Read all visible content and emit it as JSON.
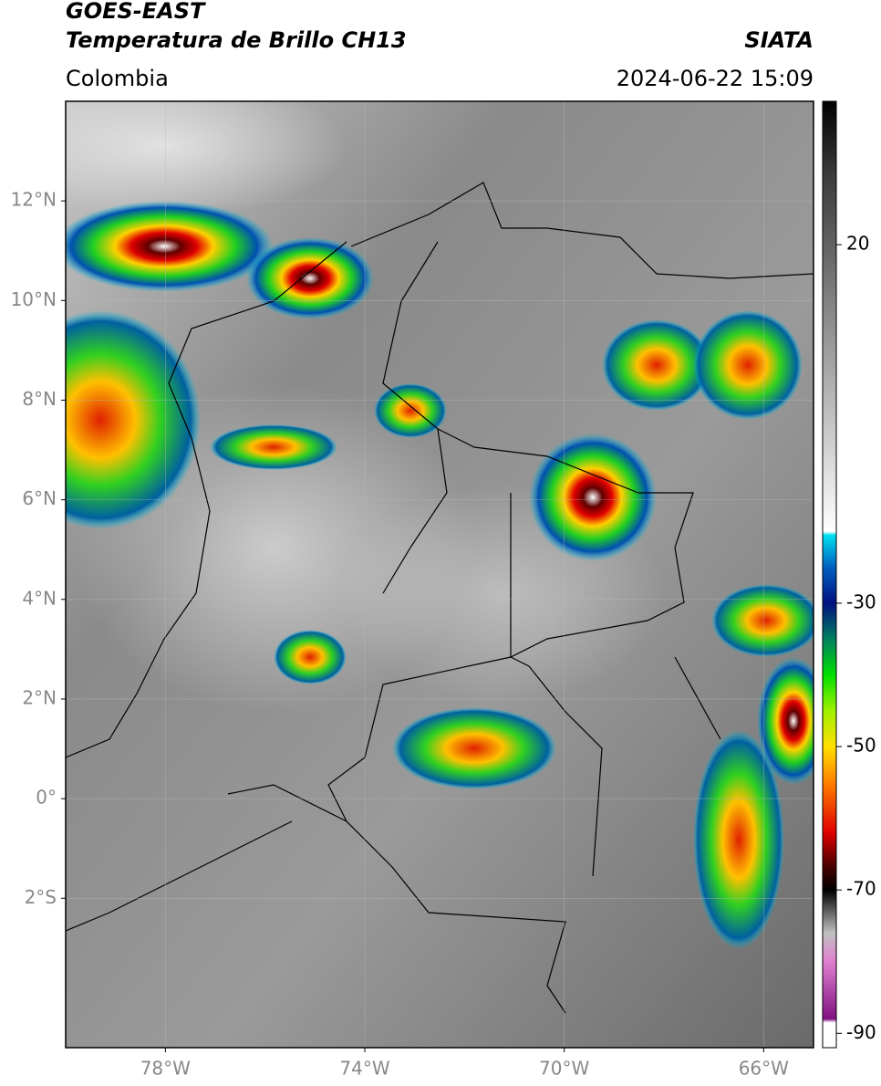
{
  "header": {
    "title": "GOES-EAST",
    "subtitle": "Temperatura de Brillo CH13",
    "source": "SIATA",
    "region": "Colombia",
    "datetime": "2024-06-22 15:09"
  },
  "map": {
    "xlim": [
      -80,
      -65
    ],
    "ylim": [
      -5,
      14
    ],
    "xticks": [
      {
        "value": -78,
        "label": "78°W"
      },
      {
        "value": -74,
        "label": "74°W"
      },
      {
        "value": -70,
        "label": "70°W"
      },
      {
        "value": -66,
        "label": "66°W"
      }
    ],
    "yticks": [
      {
        "value": 12,
        "label": "12°N"
      },
      {
        "value": 10,
        "label": "10°N"
      },
      {
        "value": 8,
        "label": "8°N"
      },
      {
        "value": 6,
        "label": "6°N"
      },
      {
        "value": 4,
        "label": "4°N"
      },
      {
        "value": 2,
        "label": "2°N"
      },
      {
        "value": 0,
        "label": "0°"
      },
      {
        "value": -2,
        "label": "2°S"
      }
    ],
    "grid": true
  },
  "colorbar": {
    "lim": [
      -92,
      40
    ],
    "ticks": [
      20,
      -30,
      -50,
      -70,
      -90
    ],
    "stops": [
      {
        "value": 40,
        "color": "#000000"
      },
      {
        "value": 30,
        "color": "#3a3a3a"
      },
      {
        "value": 10,
        "color": "#8a8a8a"
      },
      {
        "value": -20,
        "color": "#ffffff"
      },
      {
        "value": -20.5,
        "color": "#00e0f0"
      },
      {
        "value": -25,
        "color": "#0060c0"
      },
      {
        "value": -30,
        "color": "#001080"
      },
      {
        "value": -35,
        "color": "#008060"
      },
      {
        "value": -40,
        "color": "#00e000"
      },
      {
        "value": -45,
        "color": "#a0f000"
      },
      {
        "value": -50,
        "color": "#ffe000"
      },
      {
        "value": -55,
        "color": "#ff8000"
      },
      {
        "value": -62,
        "color": "#e00000"
      },
      {
        "value": -67,
        "color": "#400000"
      },
      {
        "value": -70,
        "color": "#000000"
      },
      {
        "value": -76,
        "color": "#c0c0c0"
      },
      {
        "value": -80,
        "color": "#e080d0"
      },
      {
        "value": -88,
        "color": "#801080"
      },
      {
        "value": -88.5,
        "color": "#ffffff"
      }
    ]
  }
}
